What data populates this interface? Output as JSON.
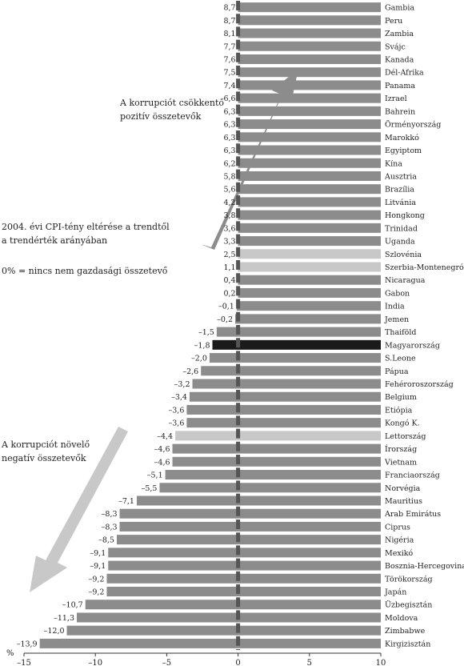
{
  "annotations": {
    "positive_line1": "A korrupciót csökkentő",
    "positive_line2": "pozitív összetevők",
    "negative_line1": "A korrupciót növelő",
    "negative_line2": "negatív összetevők",
    "title_line1": "2004. évi CPI-tény eltérése a trendtől",
    "title_line2": "a trendérték arányában",
    "note": "0% = nincs nem gazdasági összetevő"
  },
  "colors": {
    "bar": "#8c8c8c",
    "highlight_dark": "#1a1a1a",
    "highlight_light": "#c8c8c8",
    "zero_line": "#555555",
    "arrow_up": "#8c8c8c",
    "arrow_down": "#c8c8c8"
  },
  "chart_data": {
    "type": "bar",
    "orientation": "horizontal",
    "xlabel": "%",
    "xlim": [
      -15,
      10
    ],
    "xticks": [
      -15,
      -10,
      -5,
      0,
      5,
      10
    ],
    "xtick_labels": [
      "–15",
      "–10",
      "–5",
      "0",
      "5",
      "10"
    ],
    "categories": [
      "Gambia",
      "Peru",
      "Zambia",
      "Svájc",
      "Kanada",
      "Dél-Afrika",
      "Panama",
      "Izrael",
      "Bahrein",
      "Örményország",
      "Marokkó",
      "Egyiptom",
      "Kína",
      "Ausztria",
      "Brazília",
      "Litvánia",
      "Hongkong",
      "Trinidad",
      "Uganda",
      "Szlovénia",
      "Szerbia-Montenegró",
      "Nicaragua",
      "Gabon",
      "India",
      "Jemen",
      "Thaiföld",
      "Magyarország",
      "S.Leone",
      "Pápua",
      "Fehéroroszország",
      "Belgium",
      "Etiópia",
      "Kongó K.",
      "Lettország",
      "Írország",
      "Vietnam",
      "Franciaország",
      "Norvégia",
      "Mauritius",
      "Arab Emirátus",
      "Ciprus",
      "Nigéria",
      "Mexikó",
      "Bosznia-Hercegovina",
      "Törökország",
      "Japán",
      "Üzbegisztán",
      "Moldova",
      "Zimbabwe",
      "Kirgizisztán"
    ],
    "values": [
      8.7,
      8.7,
      8.1,
      7.7,
      7.6,
      7.5,
      7.4,
      6.6,
      6.3,
      6.3,
      6.3,
      6.3,
      6.2,
      5.8,
      5.6,
      4.2,
      3.8,
      3.6,
      3.3,
      2.5,
      1.1,
      0.4,
      0.2,
      -0.1,
      -0.2,
      -1.5,
      -1.8,
      -2.0,
      -2.6,
      -3.2,
      -3.4,
      -3.6,
      -3.6,
      -4.4,
      -4.6,
      -4.6,
      -5.1,
      -5.5,
      -7.1,
      -8.3,
      -8.3,
      -8.5,
      -9.1,
      -9.1,
      -9.2,
      -9.2,
      -10.7,
      -11.3,
      -12.0,
      -13.9
    ],
    "value_labels": [
      "8,7",
      "8,7",
      "8,1",
      "7,7",
      "7,6",
      "7,5",
      "7,4",
      "6,6",
      "6,3",
      "6,3",
      "6,3",
      "6,3",
      "6,2",
      "5,8",
      "5,6",
      "4,2",
      "3,8",
      "3,6",
      "3,3",
      "2,5",
      "1,1",
      "0,4",
      "0,2",
      "–0,1",
      "–0,2",
      "–1,5",
      "–1,8",
      "–2,0",
      "–2,6",
      "–3,2",
      "–3,4",
      "–3,6",
      "–3,6",
      "–4,4",
      "–4,6",
      "–4,6",
      "–5,1",
      "–5,5",
      "–7,1",
      "–8,3",
      "–8,3",
      "–8,5",
      "–9,1",
      "–9,1",
      "–9,2",
      "–9,2",
      "–10,7",
      "–11,3",
      "–12,0",
      "–13,9"
    ],
    "highlight_dark": [
      "Magyarország"
    ],
    "highlight_light": [
      "Szlovénia",
      "Szerbia-Montenegró",
      "Lettország"
    ],
    "grid": false,
    "legend": "none"
  }
}
